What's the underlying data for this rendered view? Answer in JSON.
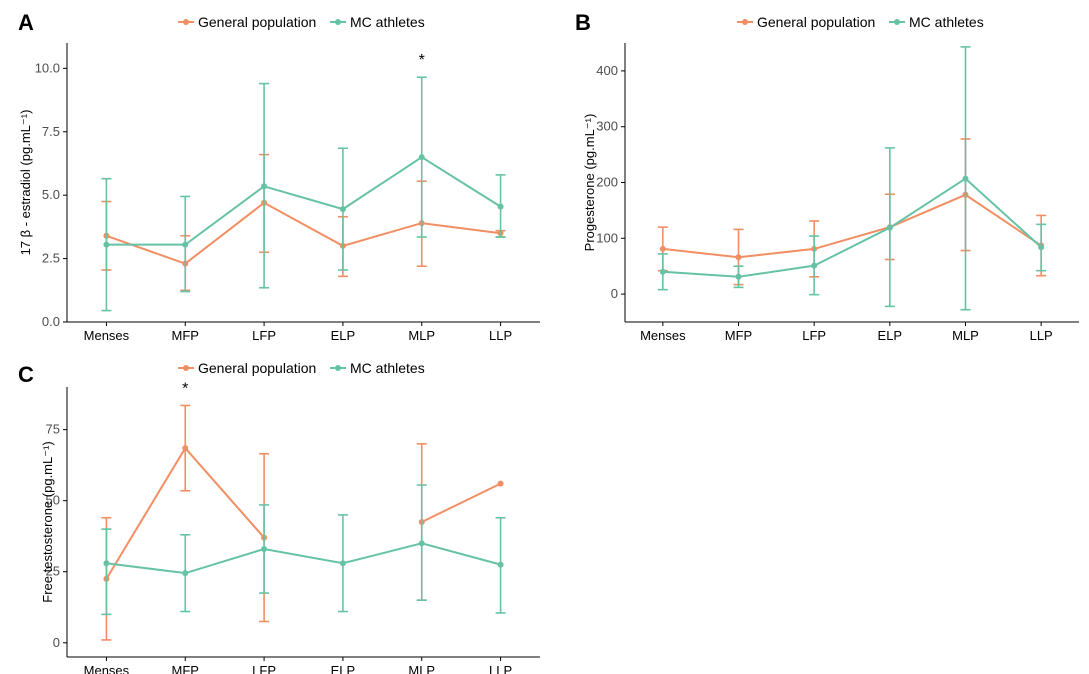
{
  "colors": {
    "general": "#F28E63",
    "athletes": "#66C2A5"
  },
  "legend": {
    "general_label": "General population",
    "athletes_label": "MC athletes"
  },
  "chart_data": [
    {
      "type": "line",
      "panel_label": "A",
      "categories": [
        "Menses",
        "MFP",
        "LFP",
        "ELP",
        "MLP",
        "LLP"
      ],
      "ylabel": "17 β - estradiol (pg.mL⁻¹)",
      "ylim": [
        0,
        11
      ],
      "yticks": [
        0,
        2.5,
        5,
        7.5,
        10
      ],
      "ytick_labels": [
        "0.0",
        "2.5",
        "5.0",
        "7.5",
        "10.0"
      ],
      "annotations": [
        {
          "category": "MLP",
          "text": "*"
        }
      ],
      "series": [
        {
          "name": "General population",
          "values": [
            3.4,
            2.3,
            4.7,
            3.0,
            3.9,
            3.5
          ],
          "lower": [
            2.05,
            1.25,
            2.75,
            1.8,
            2.2,
            3.35
          ],
          "upper": [
            4.75,
            3.4,
            6.6,
            4.15,
            5.55,
            3.6
          ]
        },
        {
          "name": "MC athletes",
          "values": [
            3.05,
            3.05,
            5.35,
            4.45,
            6.5,
            4.55
          ],
          "lower": [
            0.45,
            1.2,
            1.35,
            2.05,
            3.35,
            3.35
          ],
          "upper": [
            5.65,
            4.95,
            9.4,
            6.85,
            9.65,
            5.8
          ]
        }
      ]
    },
    {
      "type": "line",
      "panel_label": "B",
      "categories": [
        "Menses",
        "MFP",
        "LFP",
        "ELP",
        "MLP",
        "LLP"
      ],
      "ylabel": "Progesterone (pg.mL⁻¹)",
      "ylim": [
        -50,
        450
      ],
      "yticks": [
        0,
        100,
        200,
        300,
        400
      ],
      "ytick_labels": [
        "0",
        "100",
        "200",
        "300",
        "400"
      ],
      "annotations": [],
      "series": [
        {
          "name": "General population",
          "values": [
            81,
            66,
            81,
            120,
            178,
            87
          ],
          "lower": [
            42,
            17,
            31,
            62,
            78,
            33
          ],
          "upper": [
            120,
            116,
            131,
            179,
            278,
            141
          ]
        },
        {
          "name": "MC athletes",
          "values": [
            40,
            31,
            51,
            119,
            207,
            84
          ],
          "lower": [
            8,
            12,
            -1,
            -22,
            -28,
            42
          ],
          "upper": [
            72,
            50,
            104,
            262,
            443,
            125
          ]
        }
      ]
    },
    {
      "type": "line",
      "panel_label": "C",
      "categories": [
        "Menses",
        "MFP",
        "LFP",
        "ELP",
        "MLP",
        "LLP"
      ],
      "ylabel": "Free testosterone (pg.mL⁻¹)",
      "ylim": [
        -5,
        90
      ],
      "yticks": [
        0,
        25,
        50,
        75
      ],
      "ytick_labels": [
        "0",
        "25",
        "50",
        "75"
      ],
      "annotations": [
        {
          "category": "MFP",
          "text": "*"
        }
      ],
      "series": [
        {
          "name": "General population",
          "values": [
            22.5,
            68.5,
            37,
            null,
            42.5,
            56
          ],
          "lower": [
            1,
            53.5,
            7.5,
            null,
            15,
            null
          ],
          "upper": [
            44,
            83.5,
            66.5,
            null,
            70,
            null
          ]
        },
        {
          "name": "MC athletes",
          "values": [
            28,
            24.5,
            33,
            28,
            35,
            27.5
          ],
          "lower": [
            10,
            11,
            17.5,
            11,
            15,
            10.5
          ],
          "upper": [
            40,
            38,
            48.5,
            45,
            55.5,
            44
          ]
        }
      ]
    }
  ]
}
